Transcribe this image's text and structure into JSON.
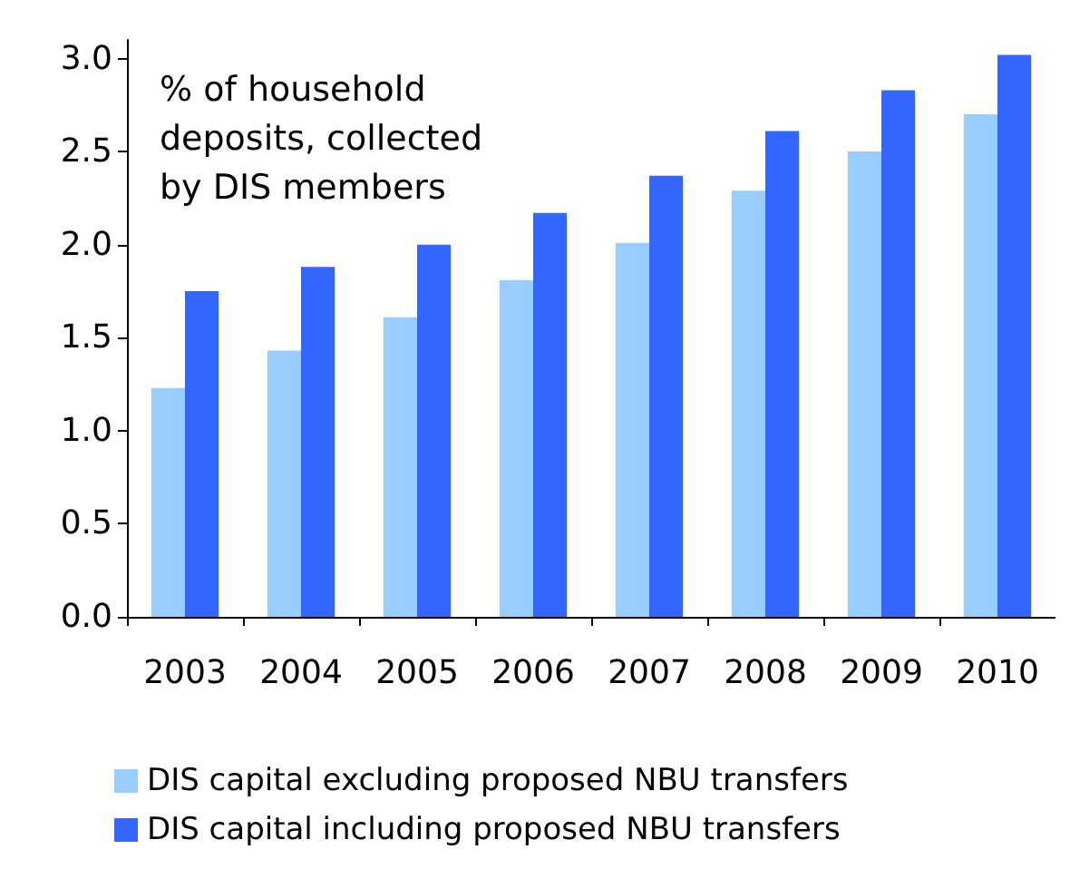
{
  "chart_data": {
    "type": "bar",
    "categories": [
      "2003",
      "2004",
      "2005",
      "2006",
      "2007",
      "2008",
      "2009",
      "2010"
    ],
    "series": [
      {
        "name": "DIS capital excluding proposed NBU transfers",
        "color": "#99ccff",
        "values": [
          1.23,
          1.43,
          1.61,
          1.81,
          2.01,
          2.29,
          2.5,
          2.7
        ]
      },
      {
        "name": "DIS capital including proposed NBU transfers",
        "color": "#3366ff",
        "values": [
          1.75,
          1.88,
          2.0,
          2.17,
          2.37,
          2.61,
          2.83,
          3.02
        ]
      }
    ],
    "ylim": [
      0,
      3.1
    ],
    "yticks": [
      {
        "value": 0,
        "label": "0.0"
      },
      0.5,
      {
        "value": 1,
        "label": "1.0"
      },
      1.5,
      {
        "value": 2,
        "label": "2.0"
      },
      2.5,
      {
        "value": 3,
        "label": "3.0"
      }
    ],
    "annotations": [
      "% of household deposits, collected by DIS members"
    ],
    "grid": false,
    "legend": "bottom left"
  }
}
